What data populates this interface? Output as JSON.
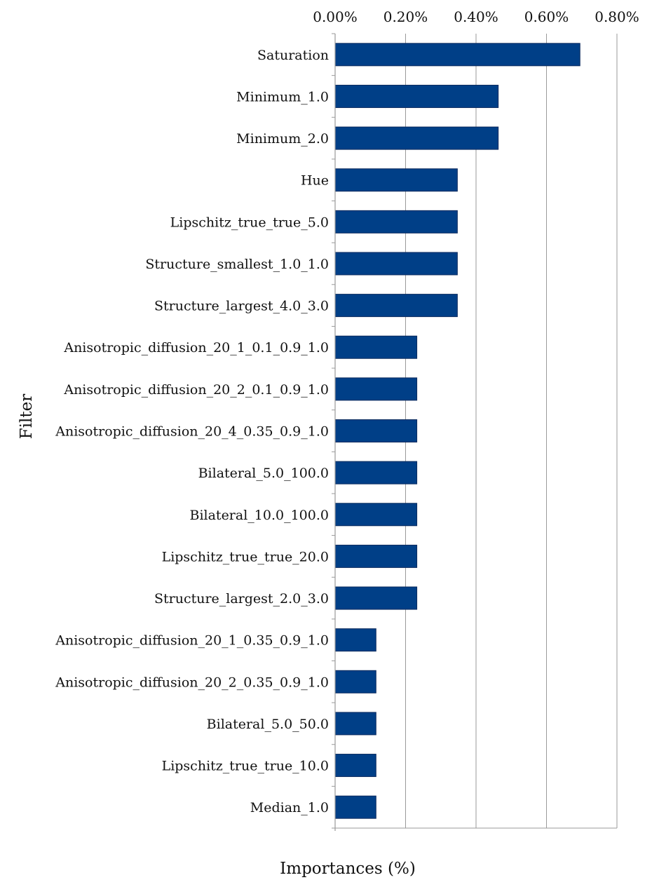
{
  "chart_data": {
    "type": "bar",
    "orientation": "horizontal",
    "xlabel": "Importances (%)",
    "ylabel": "Filter",
    "xlim": [
      0,
      0.8
    ],
    "x_tick_labels": [
      "0.00%",
      "0.20%",
      "0.40%",
      "0.60%",
      "0.80%"
    ],
    "x_ticks": [
      0,
      0.2,
      0.4,
      0.6,
      0.8
    ],
    "grid": "vertical",
    "x_axis_position": "top",
    "bar_color": "#003f87",
    "categories": [
      "Saturation",
      "Minimum_1.0",
      "Minimum_2.0",
      "Hue",
      "Lipschitz_true_true_5.0",
      "Structure_smallest_1.0_1.0",
      "Structure_largest_4.0_3.0",
      "Anisotropic_diffusion_20_1_0.1_0.9_1.0",
      "Anisotropic_diffusion_20_2_0.1_0.9_1.0",
      "Anisotropic_diffusion_20_4_0.35_0.9_1.0",
      "Bilateral_5.0_100.0",
      "Bilateral_10.0_100.0",
      "Lipschitz_true_true_20.0",
      "Structure_largest_2.0_3.0",
      "Anisotropic_diffusion_20_1_0.35_0.9_1.0",
      "Anisotropic_diffusion_20_2_0.35_0.9_1.0",
      "Bilateral_5.0_50.0",
      "Lipschitz_true_true_10.0",
      "Median_1.0"
    ],
    "values": [
      0.695,
      0.463,
      0.463,
      0.347,
      0.347,
      0.347,
      0.347,
      0.232,
      0.232,
      0.232,
      0.232,
      0.232,
      0.232,
      0.232,
      0.116,
      0.116,
      0.116,
      0.116,
      0.116
    ]
  }
}
